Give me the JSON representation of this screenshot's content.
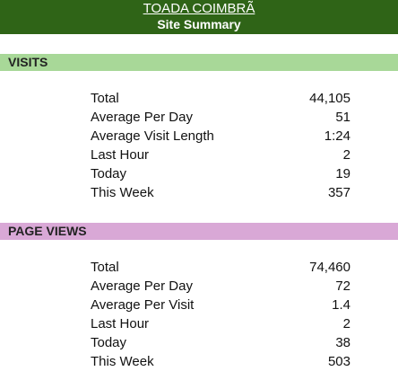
{
  "header": {
    "site_title": "TOADA COIMBRÃ",
    "subtitle": "Site Summary"
  },
  "colors": {
    "header_bg": "#2f6417",
    "visits_bar": "#a8d898",
    "pageviews_bar": "#d9a8d6"
  },
  "visits": {
    "heading": "VISITS",
    "rows": [
      {
        "label": "Total",
        "value": "44,105"
      },
      {
        "label": "Average Per Day",
        "value": "51"
      },
      {
        "label": "Average Visit Length",
        "value": "1:24"
      },
      {
        "label": "Last Hour",
        "value": "2"
      },
      {
        "label": "Today",
        "value": "19"
      },
      {
        "label": "This Week",
        "value": "357"
      }
    ]
  },
  "page_views": {
    "heading": "PAGE VIEWS",
    "rows": [
      {
        "label": "Total",
        "value": "74,460"
      },
      {
        "label": "Average Per Day",
        "value": "72"
      },
      {
        "label": "Average Per Visit",
        "value": "1.4"
      },
      {
        "label": "Last Hour",
        "value": "2"
      },
      {
        "label": "Today",
        "value": "38"
      },
      {
        "label": "This Week",
        "value": "503"
      }
    ]
  }
}
